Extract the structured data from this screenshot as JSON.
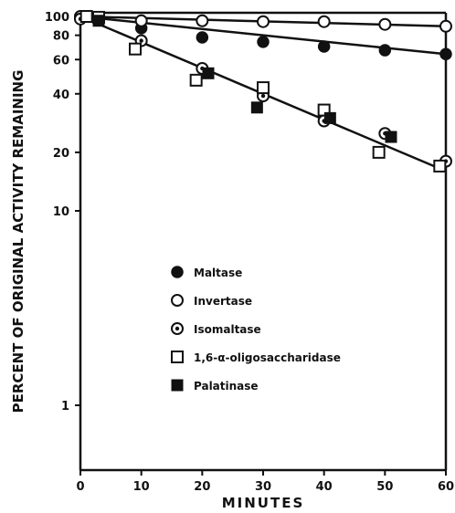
{
  "chart_data": {
    "type": "scatter",
    "xlabel": "MINUTES",
    "ylabel": "PERCENT OF ORIGINAL ACTIVITY REMAINING",
    "x_ticks": [
      0,
      10,
      20,
      30,
      40,
      50,
      60
    ],
    "y_ticks": [
      1,
      10,
      20,
      40,
      60,
      80,
      100
    ],
    "xlim": [
      0,
      60
    ],
    "ylim": [
      0.5,
      105
    ],
    "y_scale": "log",
    "legend_position": "center",
    "series": [
      {
        "name": "Maltase",
        "marker": "filled-circle",
        "points": [
          [
            0,
            100
          ],
          [
            10,
            87
          ],
          [
            20,
            78
          ],
          [
            30,
            74
          ],
          [
            40,
            70
          ],
          [
            50,
            67
          ],
          [
            60,
            64
          ]
        ]
      },
      {
        "name": "Invertase",
        "marker": "open-circle",
        "points": [
          [
            0,
            100
          ],
          [
            10,
            95
          ],
          [
            20,
            95
          ],
          [
            30,
            94
          ],
          [
            40,
            94
          ],
          [
            50,
            91
          ],
          [
            60,
            89
          ]
        ]
      },
      {
        "name": "Isomaltase",
        "marker": "dotted-circle",
        "points": [
          [
            0,
            97
          ],
          [
            10,
            75
          ],
          [
            20,
            54
          ],
          [
            30,
            39
          ],
          [
            40,
            29
          ],
          [
            50,
            25
          ],
          [
            60,
            18
          ]
        ]
      },
      {
        "name": "1,6-α-oligosaccharidase",
        "marker": "open-square",
        "points": [
          [
            1,
            100
          ],
          [
            3,
            99
          ],
          [
            9,
            68
          ],
          [
            19,
            47
          ],
          [
            30,
            43
          ],
          [
            40,
            33
          ],
          [
            49,
            20
          ],
          [
            59,
            17
          ]
        ]
      },
      {
        "name": "Palatinase",
        "marker": "filled-square",
        "points": [
          [
            3,
            95
          ],
          [
            21,
            51
          ],
          [
            29,
            34
          ],
          [
            41,
            30
          ],
          [
            51,
            24
          ]
        ]
      }
    ],
    "fit_lines": [
      {
        "series": "Invertase",
        "points": [
          [
            0,
            100
          ],
          [
            60,
            89
          ]
        ]
      },
      {
        "series": "Maltase",
        "points": [
          [
            0,
            100
          ],
          [
            60,
            64
          ]
        ]
      },
      {
        "series": "Isomaltase",
        "points": [
          [
            0,
            100
          ],
          [
            60,
            16
          ]
        ]
      }
    ]
  }
}
